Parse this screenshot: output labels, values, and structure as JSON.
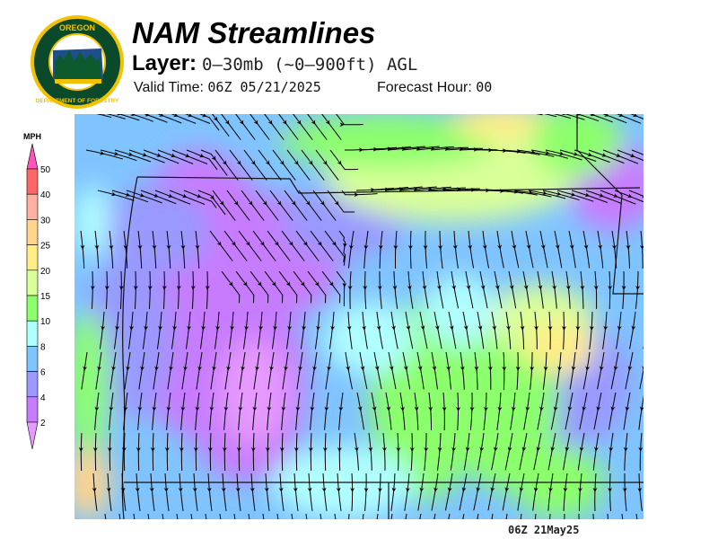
{
  "header": {
    "title": "NAM Streamlines",
    "layer_label": "Layer:",
    "layer_value": "0–30mb (~0–900ft) AGL",
    "valid_time_label": "Valid Time:",
    "valid_time_value": "06Z 05/21/2025",
    "forecast_hour_label": "Forecast Hour:",
    "forecast_hour_value": "00"
  },
  "logo": {
    "text_top": "OREGON",
    "text_bottom": "DEPARTMENT OF FORESTRY",
    "colors": {
      "ring": "#0a4a2a",
      "border": "#f2c200"
    }
  },
  "legend": {
    "units": "MPH",
    "ticks": [
      "50",
      "40",
      "30",
      "25",
      "20",
      "15",
      "10",
      "8",
      "6",
      "4",
      "2"
    ],
    "colors": {
      "over": "#ff55bb",
      "c40_50": "#ff6666",
      "c30_40": "#ffb0a0",
      "c25_30": "#ffd48c",
      "c20_25": "#ffee88",
      "c15_20": "#d9ff99",
      "c10_15": "#8cff6c",
      "c8_10": "#b0ffff",
      "c6_8": "#80c4ff",
      "c4_6": "#9999ff",
      "c2_4": "#c77cff",
      "under": "#e699ff"
    }
  },
  "map": {
    "region": "Oregon",
    "field": "wind streamlines"
  },
  "footer": {
    "stamp": "06Z 21May25"
  }
}
